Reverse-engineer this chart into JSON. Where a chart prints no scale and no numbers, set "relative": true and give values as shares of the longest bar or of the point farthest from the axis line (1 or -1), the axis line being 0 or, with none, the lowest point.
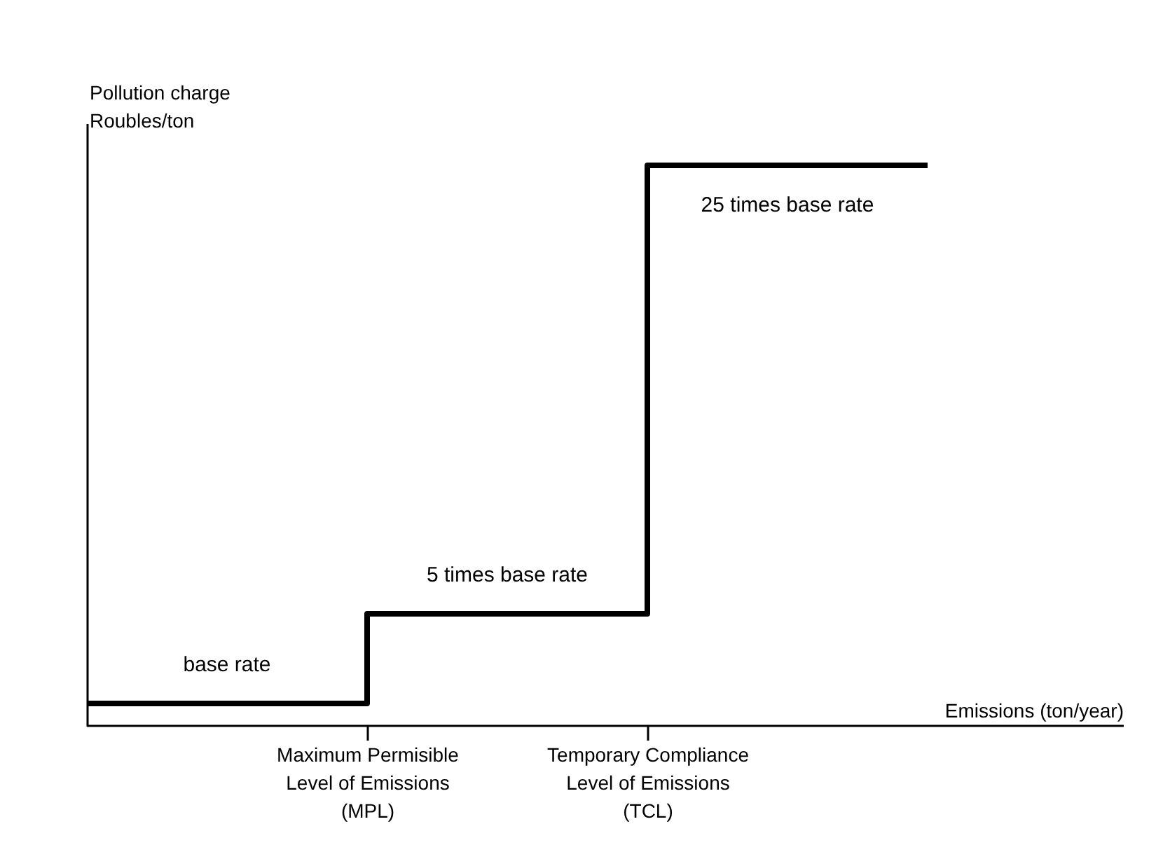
{
  "chart_data": {
    "type": "step",
    "relative": true,
    "ylabel": "Pollution charge\nRoubles/ton",
    "xlabel": "Emissions (ton/year)",
    "categories": [
      null,
      "Maximum Permisible\nLevel of Emissions\n(MPL)",
      "Temporary Compliance\nLevel of Emissions\n(TCL)",
      null
    ],
    "values": [
      0.04,
      0.2,
      1,
      1
    ],
    "color": "#000000",
    "annotations": [
      "base rate",
      "5 times base rate",
      "25 times base rate"
    ],
    "grid": false
  }
}
